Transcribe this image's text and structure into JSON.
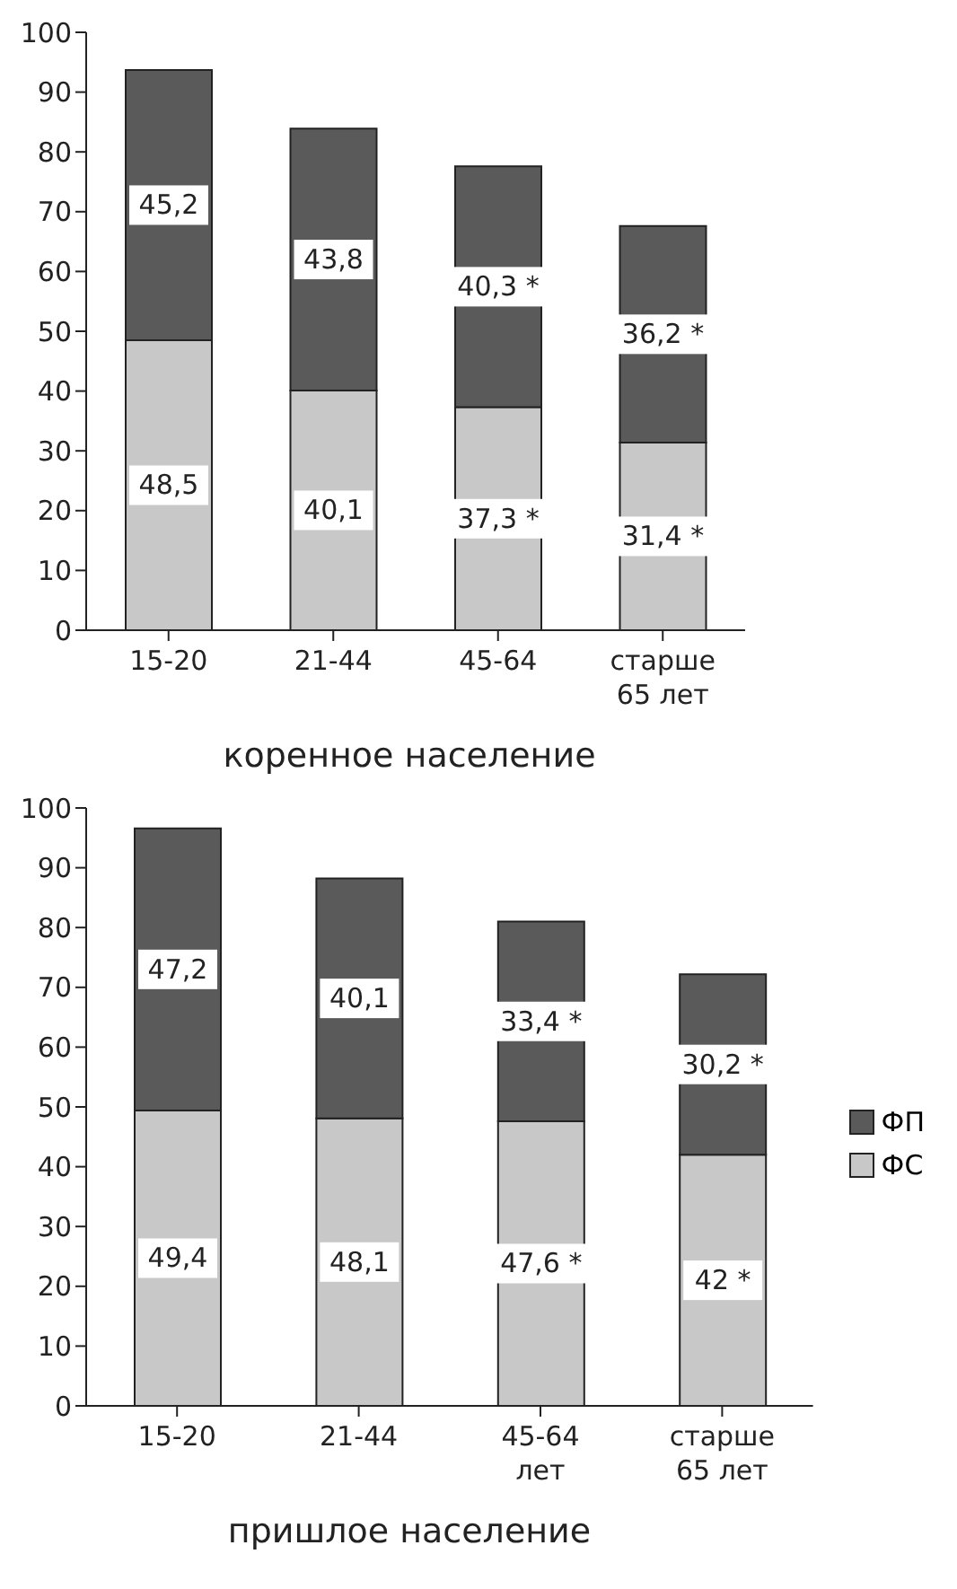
{
  "chart_data": [
    {
      "type": "bar",
      "stacked": true,
      "xlabel": "коренное население",
      "categories": [
        "15-20",
        "21-44",
        "45-64",
        "старше 65 лет"
      ],
      "ylim": [
        0,
        100
      ],
      "yticks": [
        0,
        10,
        20,
        30,
        40,
        50,
        60,
        70,
        80,
        90,
        100
      ],
      "grid": false,
      "series": [
        {
          "color": "#c8c8c8",
          "values": [
            48.5,
            40.1,
            37.3,
            31.4
          ],
          "value_labels": [
            "48,5",
            "40,1",
            "37,3 *",
            "31,4 *"
          ]
        },
        {
          "color": "#5a5a5a",
          "values": [
            45.2,
            43.8,
            40.3,
            36.2
          ],
          "value_labels": [
            "45,2",
            "43,8",
            "40,3 *",
            "36,2 *"
          ]
        }
      ]
    },
    {
      "type": "bar",
      "stacked": true,
      "xlabel": "пришлое население",
      "categories": [
        "15-20",
        "21-44",
        "45-64 лет",
        "старше 65 лет"
      ],
      "ylim": [
        0,
        100
      ],
      "yticks": [
        0,
        10,
        20,
        30,
        40,
        50,
        60,
        70,
        80,
        90,
        100
      ],
      "grid": false,
      "legend": "right",
      "series": [
        {
          "name": "ФС",
          "color": "#c8c8c8",
          "values": [
            49.4,
            48.1,
            47.6,
            42
          ],
          "value_labels": [
            "49,4",
            "48,1",
            "47,6 *",
            "42 *"
          ]
        },
        {
          "name": "ФП",
          "color": "#5a5a5a",
          "values": [
            47.2,
            40.1,
            33.4,
            30.2
          ],
          "value_labels": [
            "47,2",
            "40,1",
            "33,4 *",
            "30,2 *"
          ]
        }
      ]
    }
  ]
}
